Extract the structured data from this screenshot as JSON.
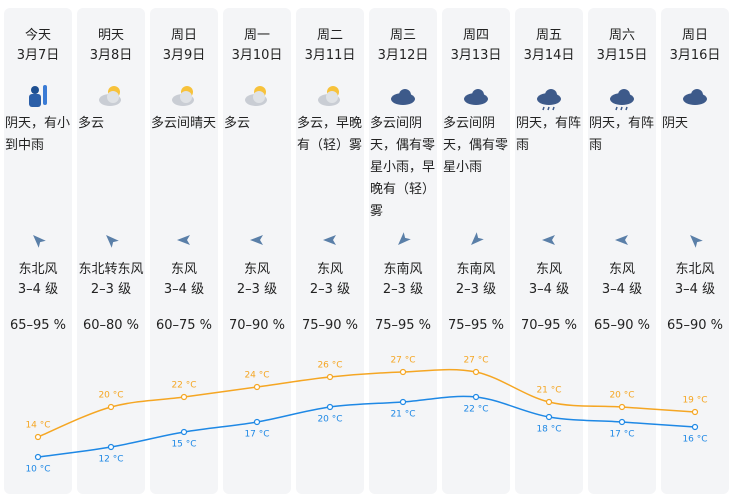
{
  "days": [
    {
      "day": "今天",
      "date": "3月7日",
      "weather": "阴天，有小到中雨",
      "wind": "东北风",
      "level": "3–4 级",
      "humidity": "65–95 %"
    },
    {
      "day": "明天",
      "date": "3月8日",
      "weather": "多云",
      "wind": "东北转东风",
      "level": "2–3 级",
      "humidity": "60–80 %"
    },
    {
      "day": "周日",
      "date": "3月9日",
      "weather": "多云间晴天",
      "wind": "东风",
      "level": "3–4 级",
      "humidity": "60–75 %"
    },
    {
      "day": "周一",
      "date": "3月10日",
      "weather": "多云",
      "wind": "东风",
      "level": "2–3 级",
      "humidity": "70–90 %"
    },
    {
      "day": "周二",
      "date": "3月11日",
      "weather": "多云，早晚有（轻）雾",
      "wind": "东风",
      "level": "2–3 级",
      "humidity": "75–90 %"
    },
    {
      "day": "周三",
      "date": "3月12日",
      "weather": "多云间阴天，偶有零星小雨，早晚有（轻）雾",
      "wind": "东南风",
      "level": "2–3 级",
      "humidity": "75–95 %"
    },
    {
      "day": "周四",
      "date": "3月13日",
      "weather": "多云间阴天，偶有零星小雨",
      "wind": "东南风",
      "level": "2–3 级",
      "humidity": "75–95 %"
    },
    {
      "day": "周五",
      "date": "3月14日",
      "weather": "阴天，有阵雨",
      "wind": "东风",
      "level": "3–4 级",
      "humidity": "70–95 %"
    },
    {
      "day": "周六",
      "date": "3月15日",
      "weather": "阴天，有阵雨",
      "wind": "东风",
      "level": "3–4 级",
      "humidity": "65–90 %"
    },
    {
      "day": "周日",
      "date": "3月16日",
      "weather": "阴天",
      "wind": "东北风",
      "level": "3–4 级",
      "humidity": "65–90 %"
    }
  ],
  "temperature": {
    "high": {
      "color": "#f5a623",
      "values": [
        14,
        20,
        22,
        24,
        26,
        27,
        27,
        21,
        20,
        19
      ],
      "value_labels": [
        "14 °C",
        "20 °C",
        "22 °C",
        "24 °C",
        "26 °C",
        "27 °C",
        "27 °C",
        "21 °C",
        "20 °C",
        "19 °C"
      ]
    },
    "low": {
      "color": "#1e88e5",
      "values": [
        10,
        12,
        15,
        17,
        20,
        21,
        22,
        18,
        17,
        16
      ],
      "value_labels": [
        "10 °C",
        "12 °C",
        "15 °C",
        "17 °C",
        "20 °C",
        "21 °C",
        "22 °C",
        "18 °C",
        "17 °C",
        "16 °C"
      ]
    }
  }
}
